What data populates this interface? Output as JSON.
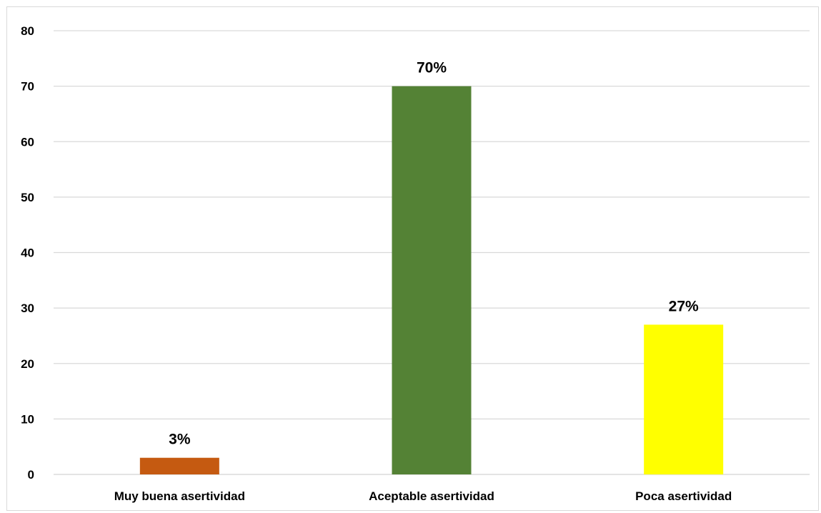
{
  "chart_data": {
    "type": "bar",
    "title": "",
    "xlabel": "",
    "ylabel": "",
    "categories": [
      "Muy buena asertividad",
      "Aceptable asertividad",
      "Poca asertividad"
    ],
    "values": [
      3,
      70,
      27
    ],
    "data_labels": [
      "3%",
      "70%",
      "27%"
    ],
    "bar_colors": [
      "#c55a11",
      "#548235",
      "#ffff00"
    ],
    "ylim": [
      0,
      80
    ],
    "yticks": [
      "0",
      "10",
      "20",
      "30",
      "40",
      "50",
      "60",
      "70",
      "80"
    ],
    "grid": true,
    "gridline_color": "#d9d9d9",
    "legend": "none"
  }
}
